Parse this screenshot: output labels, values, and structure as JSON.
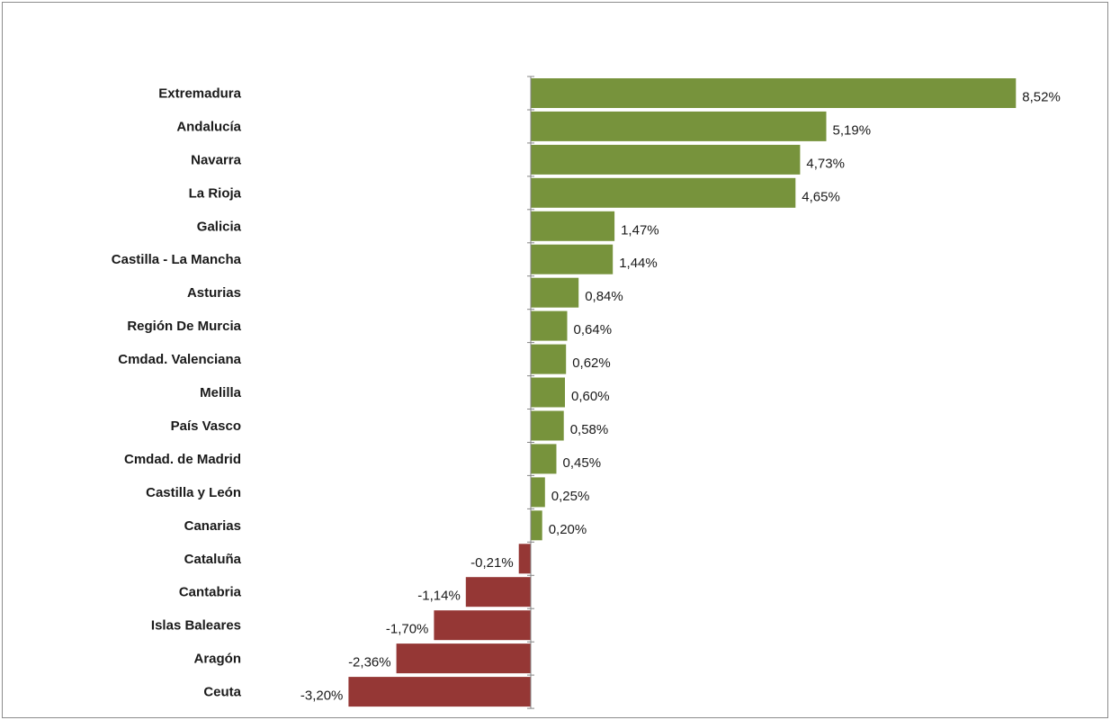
{
  "chart_data": {
    "type": "bar",
    "orientation": "horizontal",
    "title": "",
    "xlabel": "",
    "ylabel": "",
    "grid": false,
    "legend": "none",
    "xlim": [
      -3.5,
      9.0
    ],
    "categories": [
      "Extremadura",
      "Andalucía",
      "Navarra",
      "La Rioja",
      "Galicia",
      "Castilla - La Mancha",
      "Asturias",
      "Región De Murcia",
      "Cmdad. Valenciana",
      "Melilla",
      "País Vasco",
      "Cmdad. de Madrid",
      "Castilla y León",
      "Canarias",
      "Cataluña",
      "Cantabria",
      "Islas Baleares",
      "Aragón",
      "Ceuta"
    ],
    "values": [
      8.52,
      5.19,
      4.73,
      4.65,
      1.47,
      1.44,
      0.84,
      0.64,
      0.62,
      0.6,
      0.58,
      0.45,
      0.25,
      0.2,
      -0.21,
      -1.14,
      -1.7,
      -2.36,
      -3.2
    ],
    "data_labels": [
      "8,52%",
      "5,19%",
      "4,73%",
      "4,65%",
      "1,47%",
      "1,44%",
      "0,84%",
      "0,64%",
      "0,62%",
      "0,60%",
      "0,58%",
      "0,45%",
      "0,25%",
      "0,20%",
      "-0,21%",
      "-1,14%",
      "-1,70%",
      "-2,36%",
      "-3,20%"
    ],
    "colors": {
      "positive": "#77933C",
      "negative": "#953735",
      "axis": "#868686"
    }
  }
}
